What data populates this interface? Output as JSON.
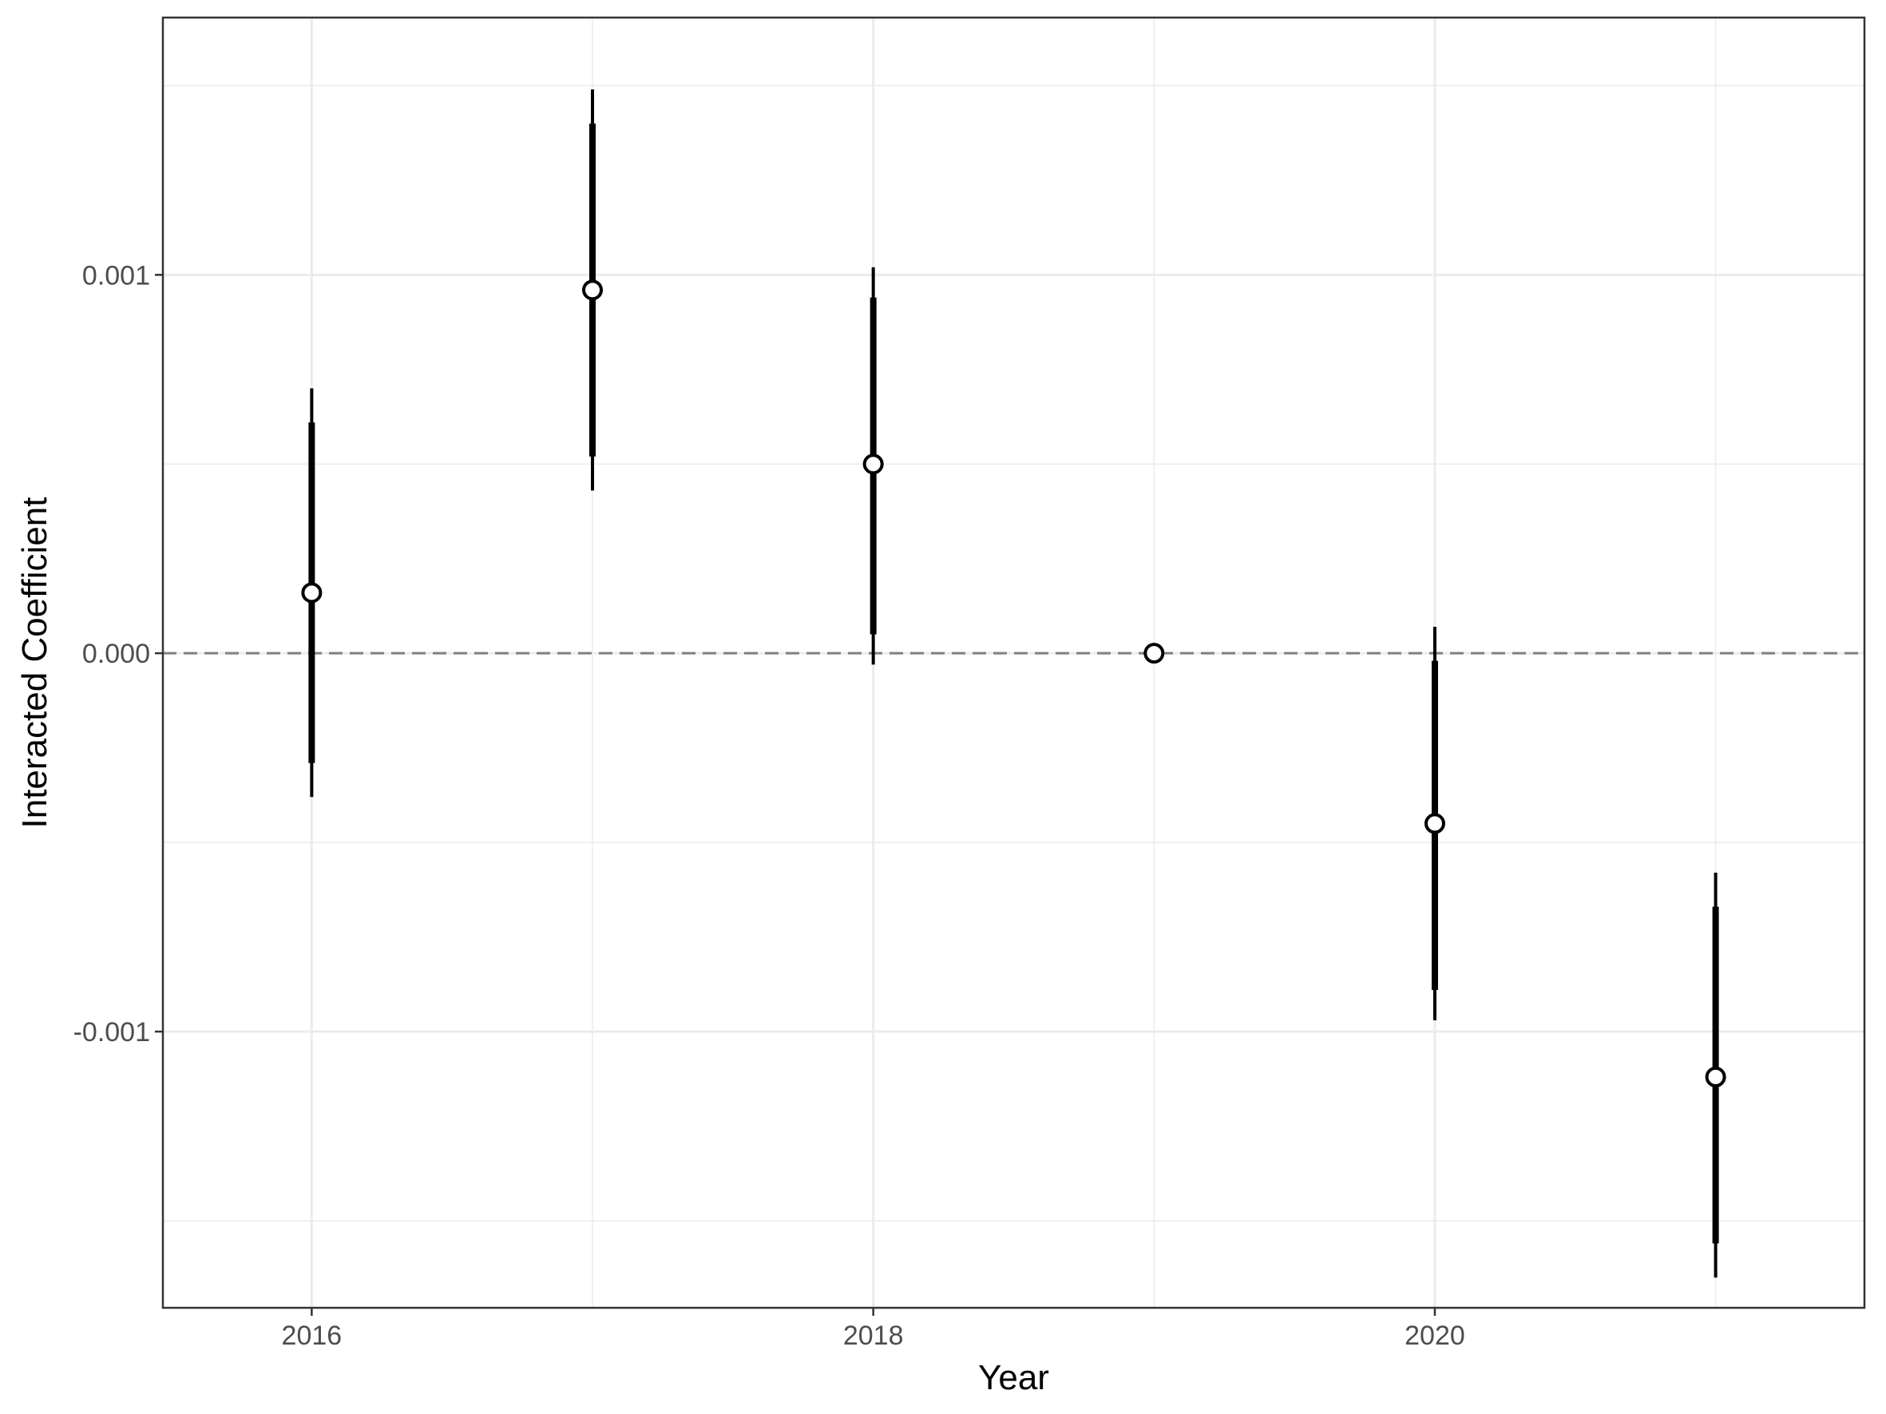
{
  "chart_data": {
    "type": "scatter",
    "xlabel": "Year",
    "ylabel": "Interacted Coefficient",
    "xlim": [
      2015.47,
      2021.53
    ],
    "ylim": [
      -0.00173,
      0.00168
    ],
    "x_ticks": [
      2016,
      2018,
      2020
    ],
    "x_tick_labels": [
      "2016",
      "2018",
      "2020"
    ],
    "y_ticks": [
      -0.001,
      0.0,
      0.001
    ],
    "y_tick_labels": [
      "-0.001",
      "0.000",
      "0.001"
    ],
    "reference_line": {
      "y": 0,
      "style": "dashed",
      "color": "#808080"
    },
    "grid": true,
    "points": [
      {
        "x": 2016,
        "estimate": 0.00016,
        "inner": [
          -0.00029,
          0.00061
        ],
        "outer": [
          -0.00038,
          0.0007
        ]
      },
      {
        "x": 2017,
        "estimate": 0.00096,
        "inner": [
          0.00052,
          0.0014
        ],
        "outer": [
          0.00043,
          0.00149
        ]
      },
      {
        "x": 2018,
        "estimate": 0.0005,
        "inner": [
          5e-05,
          0.00094
        ],
        "outer": [
          -3e-05,
          0.00102
        ]
      },
      {
        "x": 2019,
        "estimate": 0.0,
        "inner": null,
        "outer": null
      },
      {
        "x": 2020,
        "estimate": -0.00045,
        "inner": [
          -0.00089,
          -2e-05
        ],
        "outer": [
          -0.00097,
          7e-05
        ]
      },
      {
        "x": 2021,
        "estimate": -0.00112,
        "inner": [
          -0.00156,
          -0.00067
        ],
        "outer": [
          -0.00165,
          -0.00058
        ]
      }
    ],
    "colors": {
      "marks": "#000000",
      "point_fill": "#ffffff",
      "grid": "#ebebeb",
      "panel_border": "#333333"
    }
  }
}
